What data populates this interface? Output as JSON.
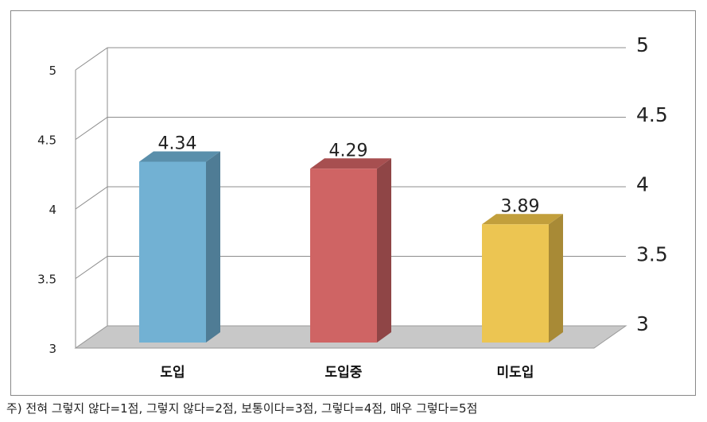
{
  "chart_data": {
    "type": "bar",
    "categories": [
      "도입",
      "도입중",
      "미도입"
    ],
    "values": [
      4.34,
      4.29,
      3.89
    ],
    "data_labels": [
      "4.34",
      "4.29",
      "3.89"
    ],
    "ylim": [
      3,
      5
    ],
    "left_ticks": [
      "3",
      "3.5",
      "4",
      "4.5",
      "5"
    ],
    "right_ticks": [
      "3",
      "3.5",
      "4",
      "4.5",
      "5"
    ],
    "grid": true,
    "colors": {
      "bars": [
        "#72b1d3",
        "#cf6464",
        "#ecc552"
      ],
      "bar_sides": [
        "#4f7c95",
        "#8f4546",
        "#a88a36"
      ],
      "bar_tops": [
        "#5a8fab",
        "#a74f50",
        "#c29f3c"
      ],
      "floor": "#c8c8c8",
      "grid": "#8c8c8c"
    }
  },
  "footnote": "주) 전혀 그렇지 않다=1점, 그렇지 않다=2점, 보통이다=3점, 그렇다=4점, 매우 그렇다=5점"
}
